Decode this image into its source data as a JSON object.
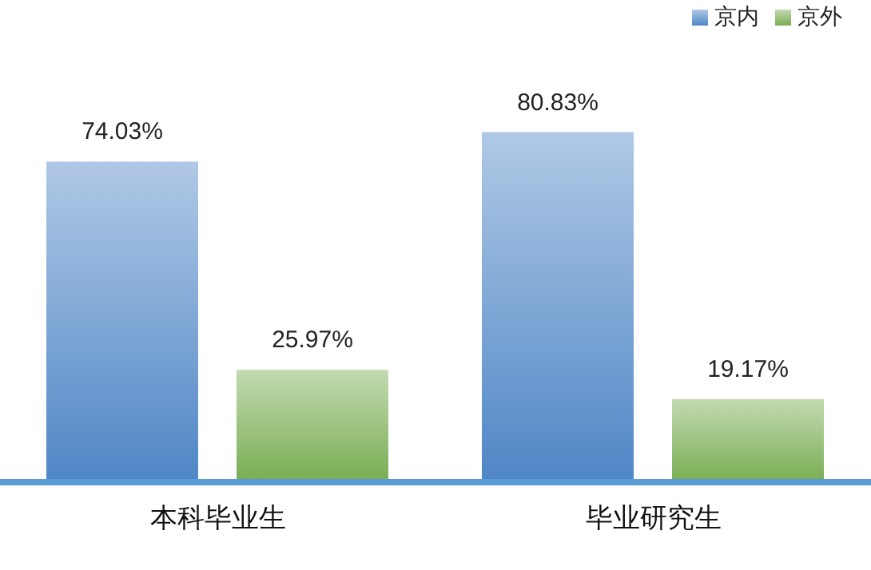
{
  "chart_data": {
    "type": "bar",
    "categories": [
      "本科毕业生",
      "毕业研究生"
    ],
    "series": [
      {
        "name": "京内",
        "color": "#4f86c6",
        "values": [
          74.03,
          80.83
        ],
        "value_labels": [
          "74.03%",
          "80.83%"
        ]
      },
      {
        "name": "京外",
        "color": "#78ad52",
        "values": [
          25.97,
          19.17
        ],
        "value_labels": [
          "25.97%",
          "19.17%"
        ]
      }
    ],
    "legend": "top right",
    "grid": false
  }
}
